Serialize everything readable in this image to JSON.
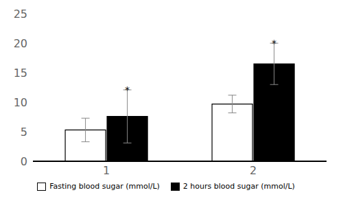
{
  "chart_data": {
    "type": "bar",
    "categories": [
      "1",
      "2"
    ],
    "series": [
      {
        "name": "Fasting blood sugar (mmol/L)",
        "color": "#ffffff",
        "values": [
          5.3,
          9.7
        ],
        "errors": [
          2.0,
          1.5
        ]
      },
      {
        "name": "2 hours blood sugar (mmol/L)",
        "color": "#000000",
        "values": [
          7.6,
          16.5
        ],
        "errors": [
          4.5,
          3.5
        ],
        "annotations": [
          "*",
          "*"
        ]
      }
    ],
    "ylim": [
      0,
      25
    ],
    "yticks": [
      0,
      5,
      10,
      15,
      20,
      25
    ],
    "grid": false,
    "legend": "bottom"
  }
}
